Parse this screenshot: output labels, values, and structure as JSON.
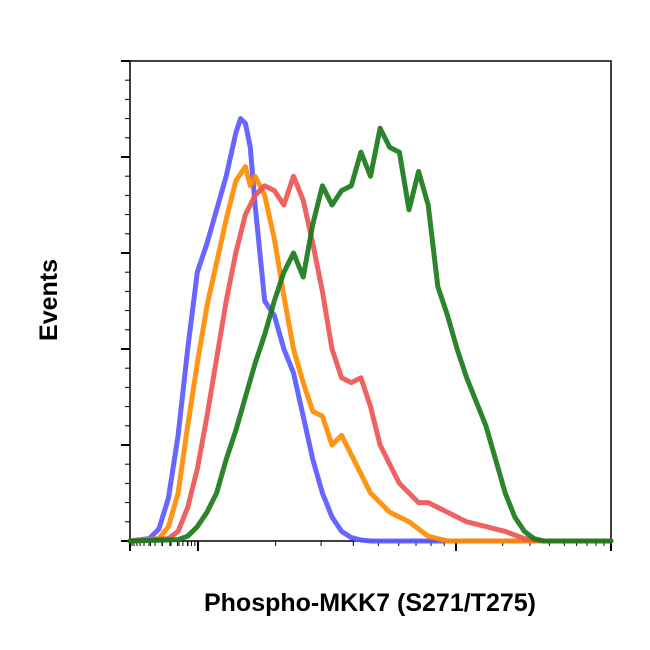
{
  "chart_data": {
    "type": "line",
    "title": "",
    "xlabel": "Phospho-MKK7 (S271/T275)",
    "ylabel": "Events",
    "x_scale": "log",
    "xlim": [
      0,
      100
    ],
    "ylim": [
      0,
      100
    ],
    "grid": false,
    "legend": "none",
    "x_tick_labels_shown": false,
    "y_tick_labels_shown": false,
    "series": [
      {
        "color": "#5a5aff",
        "x": [
          0,
          4,
          6,
          8,
          10,
          12,
          14,
          16,
          18,
          20,
          22,
          23,
          24,
          25,
          26,
          27,
          28,
          30,
          32,
          34,
          36,
          38,
          40,
          42,
          44,
          46,
          48,
          50,
          100
        ],
        "y": [
          0,
          0.5,
          2.5,
          9,
          22,
          40,
          56,
          62,
          69,
          76,
          85,
          88,
          87,
          82,
          70,
          60,
          50,
          47,
          40,
          35,
          26,
          17,
          10,
          5,
          2,
          0.7,
          0.2,
          0,
          0
        ]
      },
      {
        "color": "#ff8c00",
        "x": [
          0,
          6,
          8,
          10,
          12,
          14,
          16,
          18,
          20,
          22,
          24,
          25,
          26,
          28,
          30,
          32,
          34,
          36,
          38,
          40,
          42,
          44,
          46,
          48,
          50,
          54,
          58,
          62,
          66,
          100
        ],
        "y": [
          0,
          0.5,
          3,
          10,
          24,
          37,
          49,
          58,
          67,
          75,
          78,
          74,
          76,
          72,
          63,
          51,
          40,
          33,
          27,
          26,
          20,
          22,
          18,
          14,
          10,
          6,
          4,
          1,
          0,
          0
        ]
      },
      {
        "color": "#ee5555",
        "x": [
          0,
          8,
          10,
          12,
          14,
          16,
          18,
          20,
          22,
          24,
          26,
          28,
          30,
          32,
          34,
          36,
          38,
          40,
          42,
          44,
          46,
          48,
          50,
          52,
          54,
          56,
          58,
          60,
          62,
          66,
          70,
          74,
          78,
          82,
          86,
          100
        ],
        "y": [
          0,
          0.5,
          2,
          7,
          15,
          26,
          38,
          50,
          60,
          68,
          72,
          74,
          73,
          70,
          76,
          71,
          62,
          52,
          40,
          34,
          33,
          34,
          28,
          20,
          16,
          12,
          10,
          8,
          8,
          6,
          4,
          3,
          2,
          0.5,
          0,
          0
        ]
      },
      {
        "color": "#1a7a1a",
        "x": [
          0,
          10,
          12,
          14,
          16,
          18,
          20,
          22,
          24,
          26,
          28,
          30,
          32,
          34,
          36,
          38,
          40,
          42,
          44,
          46,
          48,
          50,
          52,
          54,
          56,
          58,
          60,
          62,
          64,
          66,
          68,
          70,
          72,
          74,
          76,
          78,
          80,
          82,
          84,
          86,
          88,
          90,
          92,
          94,
          96,
          98,
          100
        ],
        "y": [
          0,
          0.3,
          1,
          3,
          6,
          10,
          17,
          23,
          30,
          37,
          43,
          50,
          56,
          60,
          55,
          66,
          74,
          70,
          73,
          74,
          81,
          76,
          86,
          82,
          81,
          69,
          77,
          70,
          53,
          47,
          40,
          34,
          29,
          24,
          17,
          10,
          5,
          2,
          0.5,
          0,
          0,
          0,
          0,
          0,
          0,
          0,
          0
        ]
      }
    ]
  }
}
